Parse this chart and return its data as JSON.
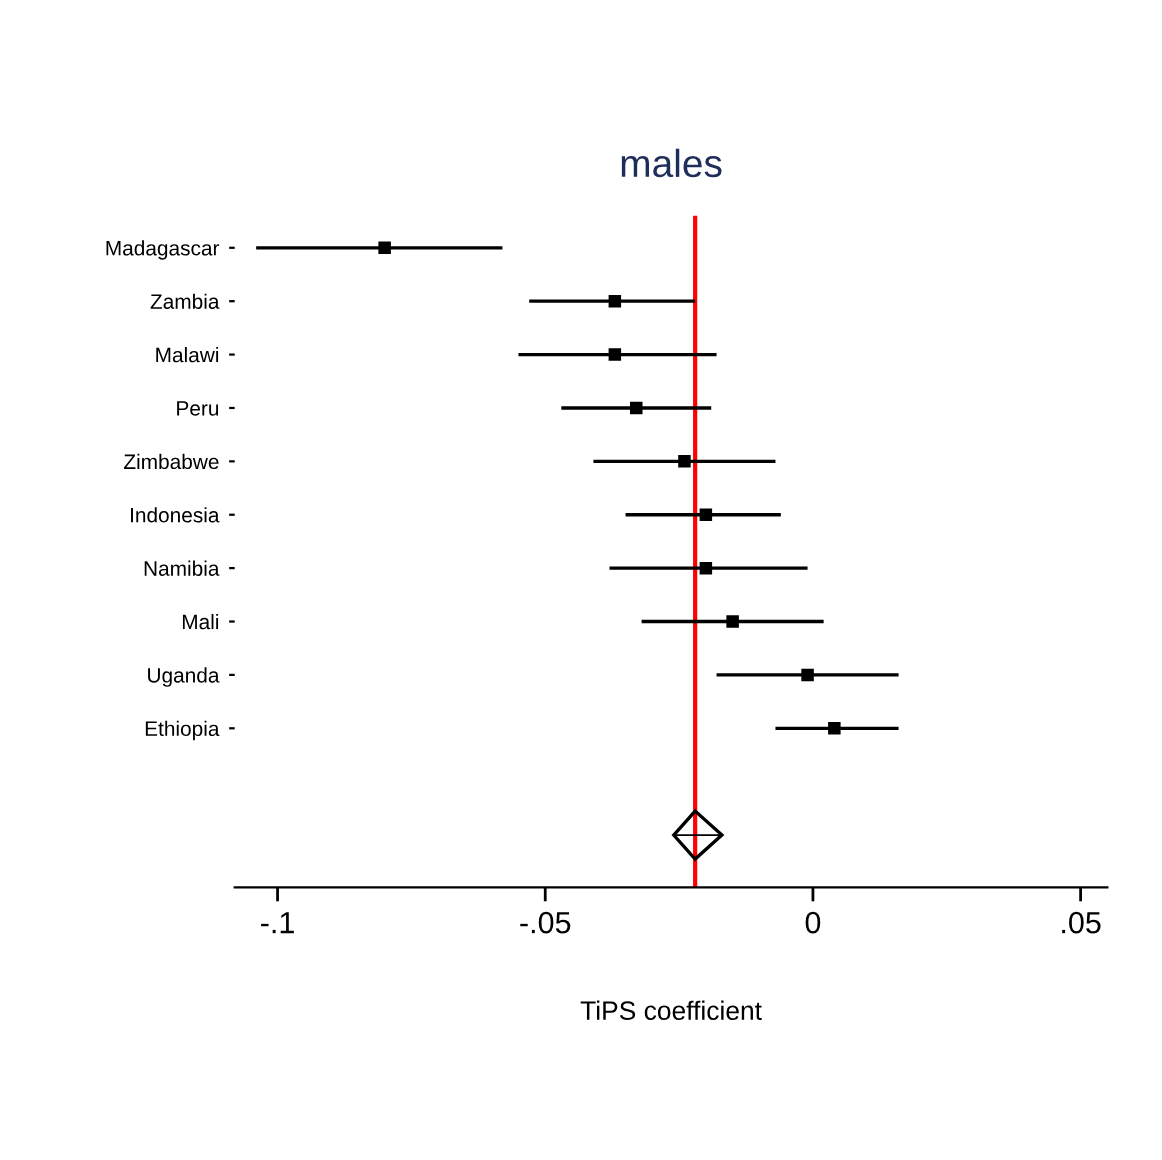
{
  "chart_data": {
    "type": "scatter",
    "orientation": "horizontal",
    "title": "males",
    "xlabel": "TiPS coefficient",
    "categories": [
      "Madagascar",
      "Zambia",
      "Malawi",
      "Peru",
      "Zimbabwe",
      "Indonesia",
      "Namibia",
      "Mali",
      "Uganda",
      "Ethiopia",
      null,
      null
    ],
    "series": [
      {
        "marker": "square",
        "color": "#000000",
        "values": [
          -0.08,
          -0.037,
          -0.037,
          -0.033,
          -0.024,
          -0.02,
          -0.02,
          -0.015,
          -0.001,
          0.004,
          null,
          null
        ],
        "errors": [
          [
            -0.104,
            -0.058
          ],
          [
            -0.053,
            -0.022
          ],
          [
            -0.055,
            -0.018
          ],
          [
            -0.047,
            -0.019
          ],
          [
            -0.041,
            -0.007
          ],
          [
            -0.035,
            -0.006
          ],
          [
            -0.038,
            -0.001
          ],
          [
            -0.032,
            0.002
          ],
          [
            -0.018,
            0.016
          ],
          [
            -0.007,
            0.016
          ],
          null,
          null
        ]
      },
      {
        "marker": "diamond",
        "color": "#000000",
        "values": [
          null,
          null,
          null,
          null,
          null,
          null,
          null,
          null,
          null,
          null,
          null,
          -0.022
        ],
        "errors": [
          null,
          null,
          null,
          null,
          null,
          null,
          null,
          null,
          null,
          null,
          null,
          [
            -0.026,
            -0.017
          ]
        ]
      }
    ],
    "ref_lines": [
      {
        "axis": "x",
        "value": -0.022,
        "color": "#ff0000"
      }
    ],
    "xlim": [
      -0.108,
      0.055
    ],
    "xticks": [
      {
        "value": -0.1,
        "label": "-.1"
      },
      {
        "value": -0.05,
        "label": "-.05"
      },
      0,
      {
        "value": 0.05,
        "label": ".05"
      }
    ],
    "grid": false,
    "legend": false
  }
}
